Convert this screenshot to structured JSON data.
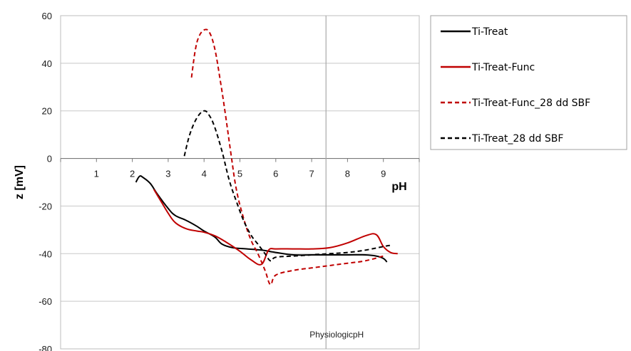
{
  "chart_data": {
    "type": "line",
    "xlabel": "pH",
    "ylabel": "z [mV]",
    "xlim": [
      0,
      10
    ],
    "ylim": [
      -80,
      60
    ],
    "x_ticks": [
      "1",
      "2",
      "3",
      "4",
      "5",
      "6",
      "7",
      "8",
      "9"
    ],
    "y_ticks": [
      "60",
      "40",
      "20",
      "0",
      "-20",
      "-40",
      "-60",
      "-80"
    ],
    "grid": "horizontal",
    "legend_position": "right",
    "annotation": {
      "text": "PhysiologicpH",
      "x": 7.4
    },
    "series": [
      {
        "name": "Ti-Treat",
        "color": "#000000",
        "dash": "solid",
        "x": [
          2.1,
          2.2,
          2.3,
          2.5,
          2.7,
          3.0,
          3.2,
          3.5,
          3.8,
          4.0,
          4.3,
          4.5,
          4.8,
          5.2,
          5.6,
          6.0,
          6.5,
          7.0,
          7.5,
          8.0,
          8.5,
          8.8,
          9.0,
          9.1
        ],
        "y": [
          -10,
          -7.5,
          -8,
          -10.5,
          -15,
          -21,
          -24,
          -26,
          -28.5,
          -30.5,
          -33,
          -36,
          -37.5,
          -38,
          -38.5,
          -39.5,
          -40.5,
          -40.5,
          -40.5,
          -40.5,
          -40.5,
          -41,
          -42,
          -43.5
        ]
      },
      {
        "name": "Ti-Treat-Func",
        "color": "#c00000",
        "dash": "solid",
        "x": [
          2.6,
          2.8,
          3.0,
          3.2,
          3.5,
          3.8,
          4.0,
          4.3,
          4.6,
          5.0,
          5.3,
          5.6,
          5.8,
          6.0,
          6.5,
          7.0,
          7.5,
          8.0,
          8.5,
          8.8,
          9.0,
          9.2,
          9.4
        ],
        "y": [
          -13,
          -18,
          -23,
          -27,
          -29.5,
          -30.5,
          -31,
          -32.5,
          -35,
          -39,
          -42.5,
          -44.5,
          -38.5,
          -38,
          -38,
          -38,
          -37.5,
          -35.5,
          -32.5,
          -32,
          -37,
          -39.5,
          -40
        ]
      },
      {
        "name": "Ti-Treat-Func_28 dd SBF",
        "color": "#c00000",
        "dash": "dashed",
        "x": [
          3.65,
          3.75,
          3.85,
          4.0,
          4.15,
          4.3,
          4.45,
          4.6,
          4.75,
          4.9,
          5.1,
          5.3,
          5.5,
          5.7,
          5.85,
          6.0,
          6.5,
          7.0,
          7.5,
          8.0,
          8.5,
          9.0
        ],
        "y": [
          34,
          45,
          51,
          54,
          53,
          46,
          33,
          18,
          2,
          -13,
          -25,
          -34,
          -40,
          -47,
          -53,
          -49,
          -47,
          -46,
          -45,
          -44,
          -43,
          -41
        ]
      },
      {
        "name": "Ti-Treat_28 dd SBF",
        "color": "#000000",
        "dash": "dashed",
        "x": [
          3.45,
          3.6,
          3.8,
          4.0,
          4.15,
          4.3,
          4.5,
          4.7,
          4.9,
          5.1,
          5.3,
          5.5,
          5.7,
          5.85,
          6.0,
          6.5,
          7.0,
          7.5,
          8.0,
          8.5,
          9.0,
          9.2
        ],
        "y": [
          1,
          10,
          17,
          20,
          18,
          13,
          3,
          -9,
          -18,
          -26,
          -32,
          -36,
          -40,
          -43,
          -41.5,
          -41,
          -40.5,
          -40,
          -39.5,
          -38.5,
          -37,
          -36.5
        ]
      }
    ]
  }
}
